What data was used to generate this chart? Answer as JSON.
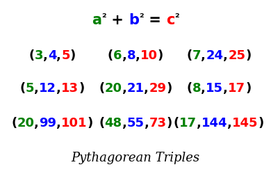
{
  "background_color": "#ffffff",
  "title": "Pythagorean Triples",
  "title_fontsize": 13,
  "green": "#008000",
  "blue": "#0000FF",
  "red": "#FF0000",
  "black": "#000000",
  "formula_fontsize": 15,
  "triple_fontsize": 13,
  "triples": [
    {
      "a": "3",
      "b": "4",
      "c": "5",
      "col": 0,
      "row": 0
    },
    {
      "a": "6",
      "b": "8",
      "c": "10",
      "col": 1,
      "row": 0
    },
    {
      "a": "7",
      "b": "24",
      "c": "25",
      "col": 2,
      "row": 0
    },
    {
      "a": "5",
      "b": "12",
      "c": "13",
      "col": 0,
      "row": 1
    },
    {
      "a": "20",
      "b": "21",
      "c": "29",
      "col": 1,
      "row": 1
    },
    {
      "a": "8",
      "b": "15",
      "c": "17",
      "col": 2,
      "row": 1
    },
    {
      "a": "20",
      "b": "99",
      "c": "101",
      "col": 0,
      "row": 2
    },
    {
      "a": "48",
      "b": "55",
      "c": "73",
      "col": 1,
      "row": 2
    },
    {
      "a": "17",
      "b": "144",
      "c": "145",
      "col": 2,
      "row": 2
    }
  ]
}
